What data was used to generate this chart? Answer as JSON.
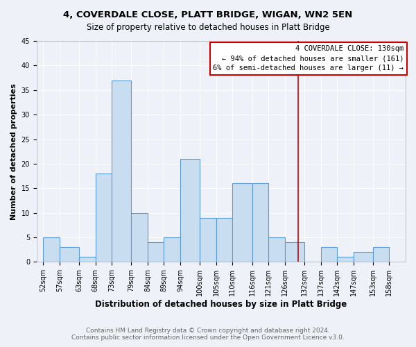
{
  "title": "4, COVERDALE CLOSE, PLATT BRIDGE, WIGAN, WN2 5EN",
  "subtitle": "Size of property relative to detached houses in Platt Bridge",
  "xlabel": "Distribution of detached houses by size in Platt Bridge",
  "ylabel": "Number of detached properties",
  "bar_left_edges": [
    52,
    57,
    63,
    68,
    73,
    79,
    84,
    89,
    94,
    100,
    105,
    110,
    116,
    121,
    126,
    132,
    137,
    142,
    147,
    153
  ],
  "bar_widths": [
    5,
    6,
    5,
    5,
    6,
    5,
    5,
    5,
    6,
    5,
    5,
    6,
    5,
    5,
    6,
    5,
    5,
    5,
    6,
    5
  ],
  "bar_heights": [
    5,
    3,
    1,
    18,
    37,
    10,
    4,
    5,
    21,
    9,
    9,
    16,
    16,
    5,
    4,
    0,
    3,
    1,
    2,
    3
  ],
  "bar_face_color": "#c9ddf0",
  "bar_edge_color": "#5b9bd5",
  "vline_x": 130,
  "vline_color": "#cc0000",
  "ylim": [
    0,
    45
  ],
  "yticks": [
    0,
    5,
    10,
    15,
    20,
    25,
    30,
    35,
    40,
    45
  ],
  "xtick_labels": [
    "52sqm",
    "57sqm",
    "63sqm",
    "68sqm",
    "73sqm",
    "79sqm",
    "84sqm",
    "89sqm",
    "94sqm",
    "100sqm",
    "105sqm",
    "110sqm",
    "116sqm",
    "121sqm",
    "126sqm",
    "132sqm",
    "137sqm",
    "142sqm",
    "147sqm",
    "153sqm",
    "158sqm"
  ],
  "xtick_positions": [
    52,
    57,
    63,
    68,
    73,
    79,
    84,
    89,
    94,
    100,
    105,
    110,
    116,
    121,
    126,
    132,
    137,
    142,
    147,
    153,
    158
  ],
  "annotation_title": "4 COVERDALE CLOSE: 130sqm",
  "annotation_line1": "← 94% of detached houses are smaller (161)",
  "annotation_line2": "6% of semi-detached houses are larger (11) →",
  "footer1": "Contains HM Land Registry data © Crown copyright and database right 2024.",
  "footer2": "Contains public sector information licensed under the Open Government Licence v3.0.",
  "bg_color": "#eef2f8",
  "title_fontsize": 9.5,
  "subtitle_fontsize": 8.5,
  "xlabel_fontsize": 8.5,
  "ylabel_fontsize": 8,
  "tick_fontsize": 7,
  "annotation_fontsize": 7.5,
  "footer_fontsize": 6.5
}
